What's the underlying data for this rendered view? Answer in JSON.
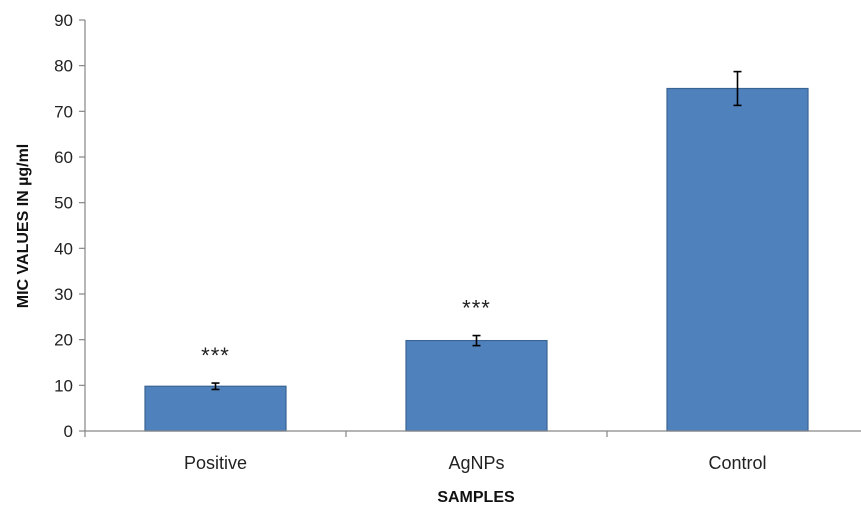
{
  "chart_data": {
    "type": "bar",
    "title": "",
    "xlabel": "SAMPLES",
    "ylabel": "MIC VALUES IN µg/ml",
    "categories": [
      "Positive",
      "AgNPs",
      "Control"
    ],
    "values": [
      9.8,
      19.8,
      75
    ],
    "errors": [
      0.7,
      1.1,
      3.7
    ],
    "annotations": [
      "***",
      "***",
      ""
    ],
    "ylim": [
      0,
      90
    ],
    "yticks": [
      0,
      10,
      20,
      30,
      40,
      50,
      60,
      70,
      80,
      90
    ],
    "grid": false,
    "legend": "none",
    "bar_color": "#4F81BD",
    "bar_edge_color": "#3A6494"
  }
}
